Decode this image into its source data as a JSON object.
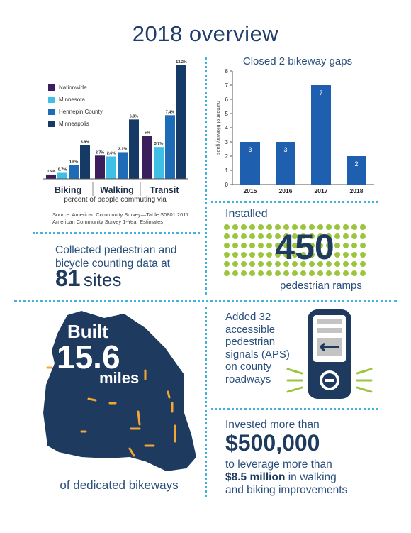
{
  "title": "2018 overview",
  "commute_chart": {
    "legend": [
      {
        "label": "Nationwide",
        "color": "#3a1f5c"
      },
      {
        "label": "Minnesota",
        "color": "#3fbfe6"
      },
      {
        "label": "Hennepin County",
        "color": "#1e6cb8"
      },
      {
        "label": "Minneapolis",
        "color": "#163a66"
      }
    ],
    "axis_caption": "percent of people commuting via",
    "source_line1": "Source: American Community Survey—Table S0801 2017",
    "source_line2": "American Community Survey 1-Year Estimates"
  },
  "gaps_title": "Closed 2 bikeway gaps",
  "gaps_ylabel": "number of bikeway gaps",
  "chart_data": [
    {
      "type": "bar",
      "categories": [
        "Biking",
        "Walking",
        "Transit"
      ],
      "series": [
        {
          "name": "Nationwide",
          "values": [
            0.5,
            2.7,
            5
          ],
          "labels": [
            "0.5%",
            "2.7%",
            "5%"
          ]
        },
        {
          "name": "Minnesota",
          "values": [
            0.7,
            2.6,
            3.7
          ],
          "labels": [
            "0.7%",
            "2.6%",
            "3.7%"
          ]
        },
        {
          "name": "Hennepin County",
          "values": [
            1.6,
            3.1,
            7.4
          ],
          "labels": [
            "1.6%",
            "3.1%",
            "7.4%"
          ]
        },
        {
          "name": "Minneapolis",
          "values": [
            3.9,
            6.9,
            13.2
          ],
          "labels": [
            "3.9%",
            "6.9%",
            "13.2%"
          ]
        }
      ],
      "xlabel": "percent of people commuting via",
      "grid": false
    },
    {
      "type": "bar",
      "title": "Closed 2 bikeway gaps",
      "categories": [
        "2015",
        "2016",
        "2017",
        "2018"
      ],
      "values": [
        3,
        3,
        7,
        2
      ],
      "ylabel": "number of bikeway gaps",
      "ylim": [
        0,
        8
      ],
      "yticks": [
        "0",
        "1",
        "2",
        "3",
        "4",
        "5",
        "6",
        "7",
        "8"
      ],
      "grid": false,
      "color": "#1e5fb0"
    }
  ],
  "ped_data": {
    "line1": "Collected pedestrian and",
    "line2": "bicycle counting data at",
    "count": "81",
    "unit": "sites"
  },
  "ramps": {
    "installed": "Installed",
    "count": "450",
    "label": "pedestrian ramps",
    "dot_color": "#9bc53d"
  },
  "bikeways": {
    "built": "Built",
    "miles_value": "15.6",
    "miles_label": "miles",
    "caption": "of dedicated bikeways",
    "map_color": "#1e3a5f",
    "accent_color": "#f3a735"
  },
  "aps": {
    "lines": [
      "Added 32",
      "accessible",
      "pedestrian",
      "signals (APS)",
      "on county",
      "roadways"
    ],
    "icon": "pedestrian-signal-icon"
  },
  "invest": {
    "line1": "Invested more than",
    "amount": "$500,000",
    "line3": "to leverage more than",
    "line4_bold": "$8.5 million",
    "line4_rest": " in walking",
    "line5": "and biking improvements"
  }
}
